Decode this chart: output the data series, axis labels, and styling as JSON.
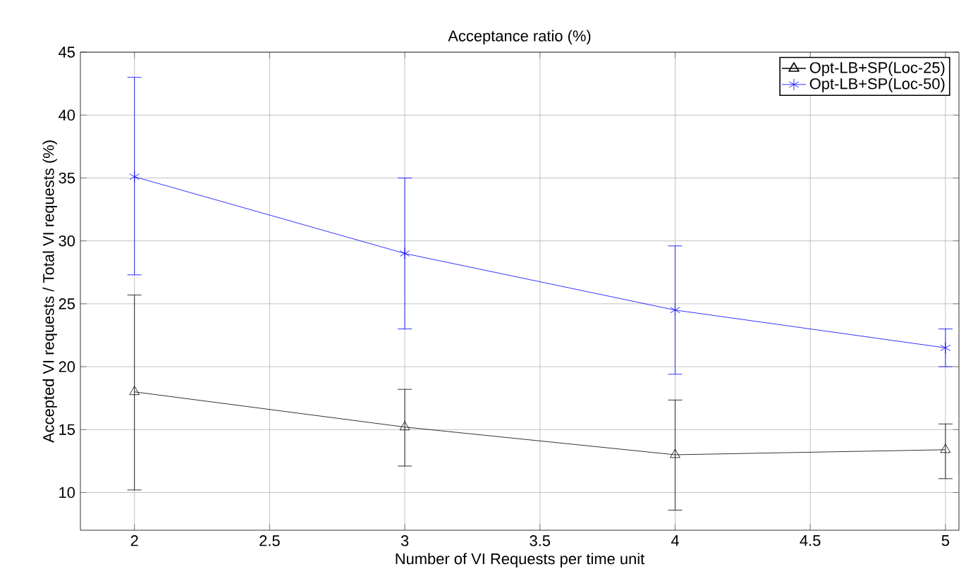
{
  "chart_data": {
    "type": "line",
    "title": "Acceptance ratio (%)",
    "xlabel": "Number of VI Requests per time unit",
    "ylabel": "Accepted VI requests / Total VI requests (%)",
    "x": [
      2,
      3,
      4,
      5
    ],
    "series": [
      {
        "name": "Opt-LB+SP(Loc-25)",
        "color": "#000000",
        "marker": "triangle",
        "values": [
          18,
          15.2,
          13.0,
          13.4
        ],
        "errors": [
          [
            10.2,
            25.7
          ],
          [
            12.1,
            18.2
          ],
          [
            8.6,
            17.35
          ],
          [
            11.1,
            15.45
          ]
        ]
      },
      {
        "name": "Opt-LB+SP(Loc-50)",
        "color": "#0000ff",
        "marker": "cross",
        "values": [
          35.1,
          29.0,
          24.5,
          21.5
        ],
        "errors": [
          [
            27.3,
            43.0
          ],
          [
            23.0,
            35.0
          ],
          [
            19.4,
            29.6
          ],
          [
            20.0,
            23.0
          ]
        ]
      }
    ],
    "xlim": [
      1.8,
      5.05
    ],
    "ylim": [
      7,
      45
    ],
    "xticks": [
      2,
      2.5,
      3,
      3.5,
      4,
      4.5,
      5
    ],
    "yticks": [
      10,
      15,
      20,
      25,
      30,
      35,
      40,
      45
    ],
    "grid": true,
    "legend": "top right",
    "line_style": "solid"
  }
}
